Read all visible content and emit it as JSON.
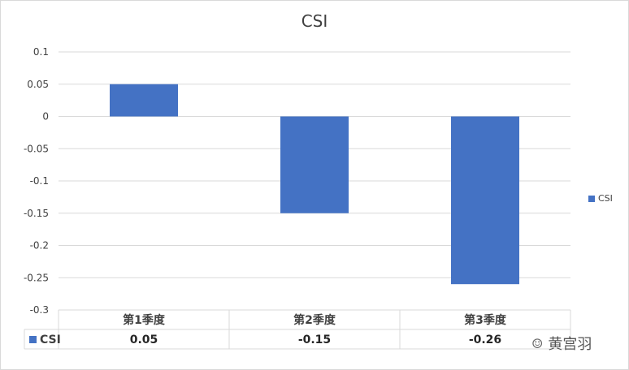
{
  "chart_data": {
    "type": "bar",
    "title": "CSI",
    "categories": [
      "第1季度",
      "第2季度",
      "第3季度"
    ],
    "series": [
      {
        "name": "CSI",
        "values": [
          0.05,
          -0.15,
          -0.26
        ],
        "value_labels": [
          "0.05",
          "-0.15",
          "-0.26"
        ],
        "color": "#4472C4"
      }
    ],
    "ylim": [
      -0.3,
      0.1
    ],
    "yticks": [
      0.1,
      0.05,
      0,
      -0.05,
      -0.1,
      -0.15,
      -0.2,
      -0.25,
      -0.3
    ],
    "ytick_labels": [
      "0.1",
      "0.05",
      "0",
      "-0.05",
      "-0.1",
      "-0.15",
      "-0.2",
      "-0.25",
      "-0.3"
    ],
    "grid": true,
    "legend_position": "right",
    "data_table": true,
    "xlabel": "",
    "ylabel": ""
  },
  "watermark": {
    "text": "黄宫羽",
    "icon": "wechat-icon"
  }
}
